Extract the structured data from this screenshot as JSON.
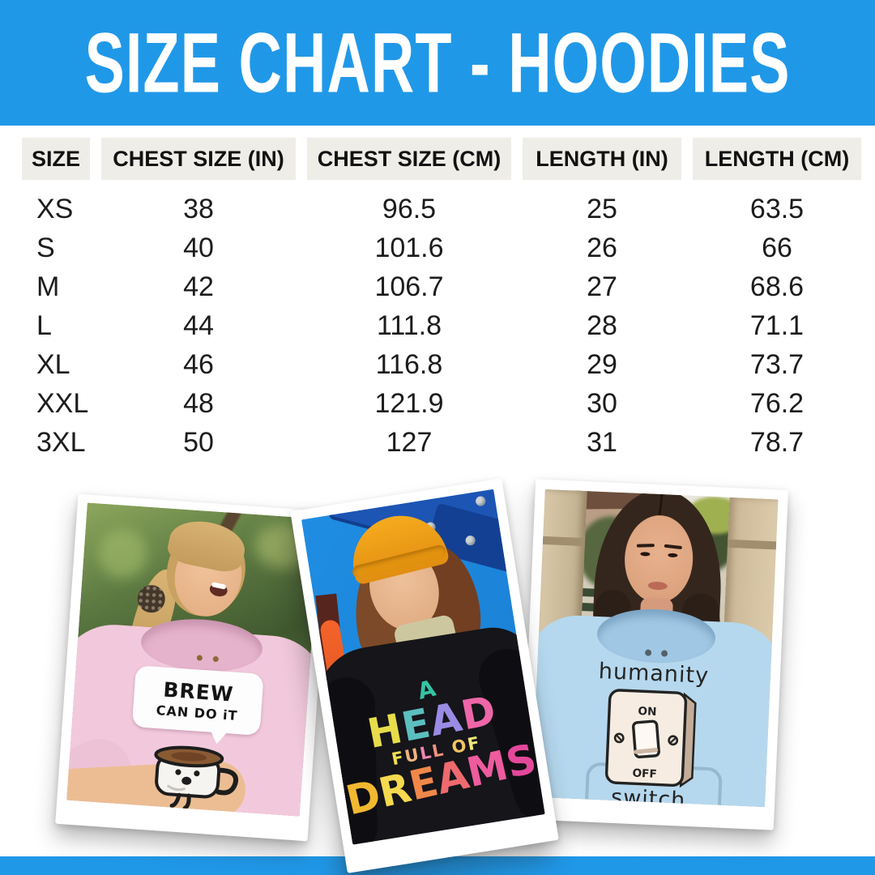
{
  "banner": {
    "title": "SIZE CHART - HOODIES"
  },
  "colors": {
    "banner_blue": "#2098E8",
    "header_cell_bg": "#EFEDE7",
    "table_text": "#1C1C1C",
    "pink_hoodie": "#F2C9DC",
    "black_hoodie": "#15151A",
    "blue_hoodie": "#B5D8EE"
  },
  "size_table": {
    "columns": [
      "SIZE",
      "CHEST SIZE (IN)",
      "CHEST SIZE (CM)",
      "LENGTH (IN)",
      "LENGTH (CM)"
    ],
    "rows": [
      [
        "XS",
        "38",
        "96.5",
        "25",
        "63.5"
      ],
      [
        "S",
        "40",
        "101.6",
        "26",
        "66"
      ],
      [
        "M",
        "42",
        "106.7",
        "27",
        "68.6"
      ],
      [
        "L",
        "44",
        "111.8",
        "28",
        "71.1"
      ],
      [
        "XL",
        "46",
        "116.8",
        "29",
        "73.7"
      ],
      [
        "XXL",
        "48",
        "121.9",
        "30",
        "76.2"
      ],
      [
        "3XL",
        "50",
        "127",
        "31",
        "78.7"
      ]
    ]
  },
  "chart_data": {
    "type": "table",
    "title": "SIZE CHART - HOODIES",
    "columns": [
      "SIZE",
      "CHEST SIZE (IN)",
      "CHEST SIZE (CM)",
      "LENGTH (IN)",
      "LENGTH (CM)"
    ],
    "rows": [
      [
        "XS",
        38,
        96.5,
        25,
        63.5
      ],
      [
        "S",
        40,
        101.6,
        26,
        66
      ],
      [
        "M",
        42,
        106.7,
        27,
        68.6
      ],
      [
        "L",
        44,
        111.8,
        28,
        71.1
      ],
      [
        "XL",
        46,
        116.8,
        29,
        73.7
      ],
      [
        "XXL",
        48,
        121.9,
        30,
        76.2
      ],
      [
        "3XL",
        50,
        127,
        31,
        78.7
      ]
    ]
  },
  "photos": {
    "pink": {
      "description": "woman laughing in pink hoodie, forest background",
      "graphic": {
        "bubble_line1": "BREW",
        "bubble_line2": "CAN DO iT"
      }
    },
    "black": {
      "description": "person in orange beanie and black hoodie, blue playground background",
      "graphic": {
        "line1": "A",
        "line2": "HEAD",
        "line3": "FULL OF",
        "line4": "DREAMS",
        "palette_a": [
          "#35C4A4",
          "#2FB098"
        ],
        "palette_head": [
          "#E8DC4A",
          "#52C9A6",
          "#6FA8F0",
          "#B07CDE",
          "#EE66A8"
        ],
        "palette_full": [
          "#F2DE4E",
          "#EE86B2",
          "#F2A04A",
          "#F2E878"
        ],
        "palette_dreams": [
          "#F2B830",
          "#F5D94E",
          "#F2874A",
          "#EE6A6E",
          "#EE5C9E",
          "#E4489A"
        ]
      }
    },
    "blue": {
      "description": "woman in light blue hoodie, street with pillars background",
      "graphic": {
        "word_top": "humanity",
        "switch_on": "ON",
        "switch_off": "OFF",
        "word_bottom": "switch"
      }
    }
  }
}
